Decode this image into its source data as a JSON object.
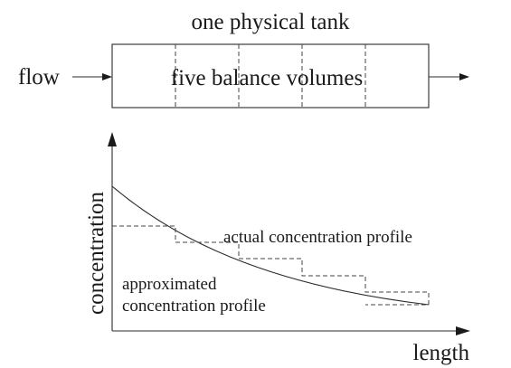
{
  "title": "one physical tank",
  "flow_label": "flow",
  "box_label": "five balance volumes",
  "balance_volume_count": 5,
  "axes": {
    "y_label": "concentration",
    "x_label": "length"
  },
  "annotations": {
    "actual": "actual concentration profile",
    "approx_line1": "approximated",
    "approx_line2": "concentration profile"
  }
}
